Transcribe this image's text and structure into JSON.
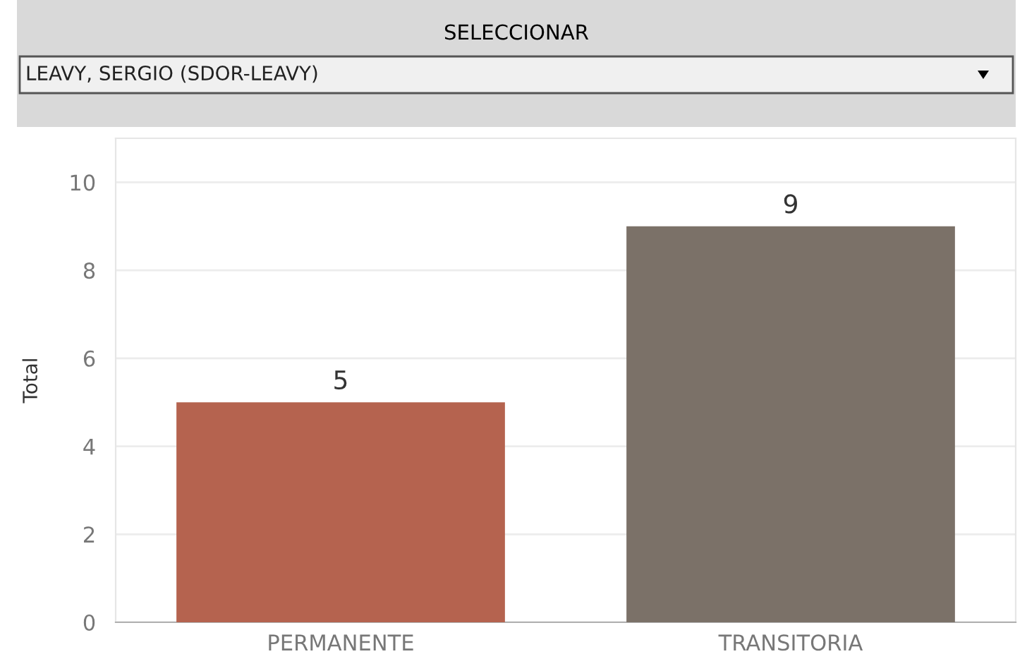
{
  "chart_data": {
    "type": "bar",
    "title": "SELECCIONAR",
    "subtitle": "LEAVY, SERGIO (SDOR-LEAVY)",
    "ylabel": "Total",
    "categories": [
      "PERMANENTE",
      "TRANSITORIA"
    ],
    "values": [
      5,
      9
    ],
    "colors": [
      "#b5634f",
      "#7b7168"
    ],
    "ylim": [
      0,
      11
    ],
    "yticks": [
      0,
      2,
      4,
      6,
      8,
      10
    ],
    "grid": "y",
    "legend": false,
    "data_labels": true
  }
}
